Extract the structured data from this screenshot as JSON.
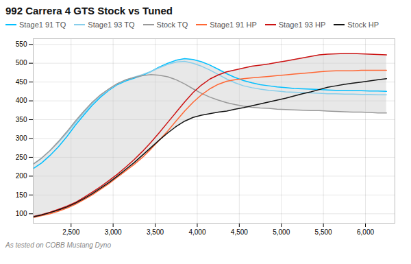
{
  "chart_data": {
    "type": "line",
    "title": "992 Carrera 4 GTS Stock vs Tuned",
    "subtitle": "As tested on COBB Mustang Dyno",
    "x": [
      2050,
      2150,
      2250,
      2350,
      2450,
      2550,
      2650,
      2750,
      2850,
      2950,
      3050,
      3150,
      3250,
      3350,
      3450,
      3550,
      3650,
      3750,
      3850,
      3950,
      4050,
      4150,
      4250,
      4350,
      4450,
      4550,
      4650,
      4750,
      4850,
      4950,
      5050,
      5150,
      5250,
      5350,
      5450,
      5550,
      5650,
      5750,
      5850,
      5950,
      6050,
      6150,
      6250
    ],
    "series": [
      {
        "name": "Stage1 91 TQ",
        "color": "#00bfff",
        "values": [
          220,
          235,
          255,
          278,
          305,
          335,
          362,
          388,
          410,
          428,
          443,
          453,
          460,
          468,
          478,
          490,
          500,
          508,
          512,
          510,
          504,
          495,
          484,
          472,
          462,
          454,
          448,
          443,
          440,
          437,
          435,
          433,
          432,
          431,
          430,
          429,
          428,
          428,
          427,
          427,
          426,
          426,
          425
        ]
      },
      {
        "name": "Stage1 93 TQ",
        "color": "#87ceeb",
        "values": [
          232,
          248,
          268,
          290,
          315,
          342,
          368,
          393,
          413,
          430,
          445,
          455,
          463,
          470,
          478,
          488,
          497,
          503,
          505,
          500,
          492,
          482,
          470,
          458,
          448,
          440,
          435,
          431,
          428,
          426,
          424,
          423,
          422,
          421,
          420,
          419,
          419,
          418,
          418,
          417,
          417,
          416,
          416
        ]
      },
      {
        "name": "Stock TQ",
        "color": "#999999",
        "values": [
          232,
          248,
          268,
          292,
          318,
          346,
          372,
          396,
          416,
          432,
          446,
          456,
          462,
          467,
          470,
          468,
          464,
          456,
          445,
          432,
          420,
          410,
          402,
          395,
          390,
          386,
          383,
          381,
          380,
          378,
          377,
          376,
          375,
          374,
          374,
          373,
          372,
          371,
          370,
          370,
          369,
          368,
          368
        ]
      },
      {
        "name": "Stage1 91 HP",
        "color": "#ff6633",
        "values": [
          90,
          95,
          100,
          107,
          115,
          125,
          137,
          150,
          165,
          180,
          197,
          214,
          231,
          250,
          272,
          296,
          320,
          347,
          373,
          396,
          416,
          432,
          444,
          452,
          456,
          459,
          461,
          463,
          465,
          467,
          469,
          471,
          473,
          475,
          477,
          479,
          480,
          480,
          480,
          481,
          481,
          481,
          481
        ]
      },
      {
        "name": "Stage1 93 HP",
        "color": "#cc1111",
        "values": [
          93,
          98,
          104,
          112,
          120,
          130,
          143,
          157,
          172,
          188,
          205,
          224,
          244,
          266,
          290,
          316,
          343,
          370,
          397,
          422,
          442,
          458,
          469,
          477,
          482,
          487,
          492,
          495,
          498,
          502,
          506,
          510,
          514,
          518,
          522,
          524,
          525,
          526,
          526,
          525,
          524,
          523,
          522
        ]
      },
      {
        "name": "Stock HP",
        "color": "#111111",
        "values": [
          92,
          97,
          103,
          110,
          118,
          128,
          140,
          153,
          168,
          183,
          200,
          218,
          236,
          256,
          276,
          296,
          315,
          332,
          346,
          356,
          362,
          366,
          370,
          373,
          378,
          382,
          387,
          392,
          397,
          402,
          407,
          413,
          419,
          424,
          430,
          436,
          440,
          444,
          447,
          450,
          453,
          456,
          459
        ]
      }
    ],
    "band": {
      "color": "#cccccc",
      "lower": [
        90,
        95,
        100,
        107,
        115,
        125,
        137,
        150,
        165,
        180,
        197,
        214,
        231,
        250,
        272,
        296,
        315,
        332,
        346,
        356,
        362,
        366,
        370,
        373,
        378,
        382,
        383,
        381,
        380,
        378,
        377,
        376,
        375,
        374,
        374,
        373,
        372,
        371,
        370,
        370,
        369,
        368,
        368
      ],
      "upper": [
        232,
        248,
        268,
        292,
        318,
        346,
        372,
        396,
        416,
        432,
        446,
        456,
        463,
        470,
        478,
        490,
        500,
        508,
        512,
        510,
        504,
        495,
        484,
        477,
        482,
        487,
        492,
        495,
        498,
        502,
        506,
        510,
        514,
        518,
        522,
        524,
        525,
        526,
        526,
        525,
        524,
        523,
        522
      ]
    },
    "xlim": [
      2050,
      6350
    ],
    "ylim": [
      75,
      565
    ],
    "xticks": [
      {
        "value": 2500,
        "label": "2,500"
      },
      {
        "value": 3000,
        "label": "3,000"
      },
      {
        "value": 3500,
        "label": "3,500"
      },
      {
        "value": 4000,
        "label": "4,000"
      },
      {
        "value": 4500,
        "label": "4,500"
      },
      {
        "value": 5000,
        "label": "5,000"
      },
      {
        "value": 5500,
        "label": "5,500"
      },
      {
        "value": 6000,
        "label": "6,000"
      }
    ],
    "yticks": [
      100,
      150,
      200,
      250,
      300,
      350,
      400,
      450,
      500,
      550
    ],
    "grid": true,
    "legend": "upper left"
  }
}
